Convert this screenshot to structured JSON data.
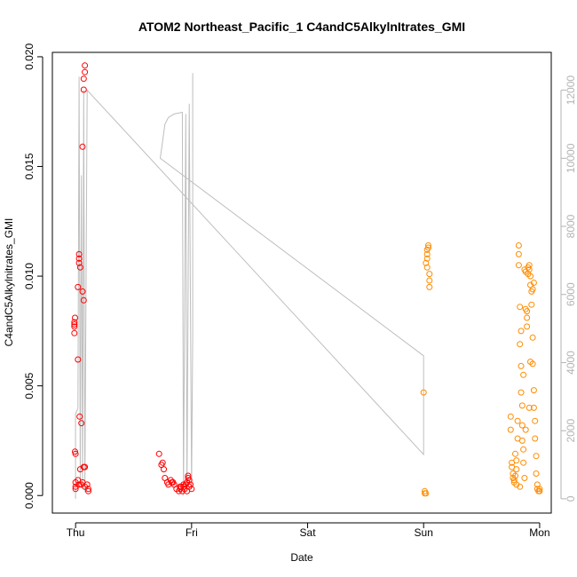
{
  "chart_data": {
    "type": "scatter",
    "title": "ATOM2 Northeast_Pacific_1 C4andC5AlkylnItrates_GMI",
    "xlabel": "Date",
    "ylabel": "C4andC5Alkylnitrates_GMI",
    "x_ticks": [
      {
        "value": 0,
        "label": "Thu"
      },
      {
        "value": 1,
        "label": "Fri"
      },
      {
        "value": 2,
        "label": "Sat"
      },
      {
        "value": 3,
        "label": "Sun"
      },
      {
        "value": 4,
        "label": "Mon"
      }
    ],
    "xlim": [
      -0.2,
      4.1
    ],
    "ylim": [
      -0.0008,
      0.0202
    ],
    "y_ticks": [
      0.0,
      0.005,
      0.01,
      0.015,
      0.02
    ],
    "y_tick_labels": [
      "0.000",
      "0.005",
      "0.010",
      "0.015",
      "0.020"
    ],
    "y2lim": [
      -420,
      13110
    ],
    "y2_ticks": [
      0,
      2000,
      4000,
      6000,
      8000,
      10000,
      12000
    ],
    "y2_tick_labels": [
      "0",
      "2000",
      "4000",
      "6000",
      "8000",
      "10000",
      "12000"
    ],
    "colors": {
      "red_series": "#ff0000",
      "orange_series": "#ff8c00",
      "altitude_line": "#bebebe",
      "right_axis": "#b3b3b3"
    },
    "series": [
      {
        "color": "red",
        "points": [
          [
            -0.01,
            0.0079
          ],
          [
            -0.01,
            0.0078
          ],
          [
            -0.01,
            0.0077
          ],
          [
            -0.01,
            0.0074
          ],
          [
            -0.005,
            0.0081
          ],
          [
            -0.005,
            0.002
          ],
          [
            0.0,
            0.0019
          ],
          [
            0.0,
            0.0006
          ],
          [
            0.0,
            0.0004
          ],
          [
            0.0,
            0.0003
          ],
          [
            0.02,
            0.0062
          ],
          [
            0.02,
            0.0095
          ],
          [
            0.03,
            0.0106
          ],
          [
            0.03,
            0.0108
          ],
          [
            0.03,
            0.011
          ],
          [
            0.04,
            0.0104
          ],
          [
            0.035,
            0.0036
          ],
          [
            0.04,
            0.0012
          ],
          [
            0.05,
            0.0033
          ],
          [
            0.06,
            0.0093
          ],
          [
            0.07,
            0.0089
          ],
          [
            0.07,
            0.0013
          ],
          [
            0.08,
            0.0013
          ],
          [
            0.06,
            0.0159
          ],
          [
            0.07,
            0.0185
          ],
          [
            0.07,
            0.019
          ],
          [
            0.08,
            0.0193
          ],
          [
            0.08,
            0.0196
          ],
          [
            0.02,
            0.0007
          ],
          [
            0.03,
            0.0005
          ],
          [
            0.05,
            0.0005
          ],
          [
            0.06,
            0.0006
          ],
          [
            0.08,
            0.0004
          ],
          [
            0.1,
            0.0005
          ],
          [
            0.11,
            0.0003
          ],
          [
            0.11,
            0.0002
          ],
          [
            0.72,
            0.0019
          ],
          [
            0.74,
            0.0014
          ],
          [
            0.75,
            0.0015
          ],
          [
            0.76,
            0.0012
          ],
          [
            0.77,
            0.0008
          ],
          [
            0.79,
            0.0006
          ],
          [
            0.8,
            0.0005
          ],
          [
            0.82,
            0.0007
          ],
          [
            0.83,
            0.0006
          ],
          [
            0.84,
            0.0006
          ],
          [
            0.85,
            0.0005
          ],
          [
            0.87,
            0.0003
          ],
          [
            0.89,
            0.0002
          ],
          [
            0.9,
            0.0003
          ],
          [
            0.91,
            0.0004
          ],
          [
            0.92,
            0.0002
          ],
          [
            0.93,
            0.0004
          ],
          [
            0.94,
            0.0003
          ],
          [
            0.95,
            0.0005
          ],
          [
            0.96,
            0.0006
          ],
          [
            0.97,
            0.0008
          ],
          [
            0.97,
            0.0009
          ],
          [
            0.98,
            0.0004
          ],
          [
            0.99,
            0.0005
          ],
          [
            1.0,
            0.0003
          ],
          [
            0.9,
            0.0004
          ],
          [
            0.93,
            0.0005
          ],
          [
            0.96,
            0.0002
          ],
          [
            0.98,
            0.0007
          ]
        ]
      },
      {
        "color": "orange",
        "points": [
          [
            3.0,
            0.0047
          ],
          [
            3.01,
            0.0002
          ],
          [
            3.01,
            0.0001
          ],
          [
            3.02,
            0.0001
          ],
          [
            3.02,
            0.0106
          ],
          [
            3.03,
            0.0108
          ],
          [
            3.03,
            0.011
          ],
          [
            3.03,
            0.0112
          ],
          [
            3.04,
            0.0114
          ],
          [
            3.04,
            0.0113
          ],
          [
            3.03,
            0.0104
          ],
          [
            3.05,
            0.0101
          ],
          [
            3.05,
            0.0098
          ],
          [
            3.05,
            0.0095
          ],
          [
            3.75,
            0.0036
          ],
          [
            3.75,
            0.003
          ],
          [
            3.76,
            0.0015
          ],
          [
            3.76,
            0.0013
          ],
          [
            3.77,
            0.001
          ],
          [
            3.77,
            0.0008
          ],
          [
            3.78,
            0.0006
          ],
          [
            3.78,
            0.0007
          ],
          [
            3.79,
            0.0009
          ],
          [
            3.79,
            0.0019
          ],
          [
            3.8,
            0.0012
          ],
          [
            3.8,
            0.0016
          ],
          [
            3.81,
            0.0034
          ],
          [
            3.81,
            0.0026
          ],
          [
            3.82,
            0.0114
          ],
          [
            3.82,
            0.011
          ],
          [
            3.82,
            0.0105
          ],
          [
            3.83,
            0.0086
          ],
          [
            3.83,
            0.0069
          ],
          [
            3.84,
            0.0059
          ],
          [
            3.84,
            0.0047
          ],
          [
            3.85,
            0.0041
          ],
          [
            3.85,
            0.0032
          ],
          [
            3.85,
            0.0025
          ],
          [
            3.86,
            0.0021
          ],
          [
            3.86,
            0.0015
          ],
          [
            3.87,
            0.0008
          ],
          [
            3.87,
            0.0103
          ],
          [
            3.88,
            0.0102
          ],
          [
            3.88,
            0.0085
          ],
          [
            3.89,
            0.0084
          ],
          [
            3.89,
            0.0081
          ],
          [
            3.89,
            0.0077
          ],
          [
            3.9,
            0.0101
          ],
          [
            3.9,
            0.0104
          ],
          [
            3.91,
            0.0105
          ],
          [
            3.91,
            0.0103
          ],
          [
            3.92,
            0.01
          ],
          [
            3.92,
            0.0096
          ],
          [
            3.93,
            0.0093
          ],
          [
            3.93,
            0.0087
          ],
          [
            3.94,
            0.0072
          ],
          [
            3.94,
            0.006
          ],
          [
            3.95,
            0.0048
          ],
          [
            3.95,
            0.004
          ],
          [
            3.96,
            0.0034
          ],
          [
            3.96,
            0.0026
          ],
          [
            3.97,
            0.0018
          ],
          [
            3.97,
            0.001
          ],
          [
            3.98,
            0.0005
          ],
          [
            3.98,
            0.0003
          ],
          [
            3.99,
            0.0002
          ],
          [
            4.0,
            0.0003
          ],
          [
            4.0,
            0.0002
          ],
          [
            3.88,
            0.003
          ],
          [
            3.86,
            0.0055
          ],
          [
            3.84,
            0.0075
          ],
          [
            3.8,
            0.0005
          ],
          [
            3.83,
            0.0004
          ],
          [
            3.91,
            0.004
          ],
          [
            3.94,
            0.0094
          ],
          [
            3.95,
            0.0097
          ],
          [
            3.92,
            0.0061
          ]
        ]
      }
    ],
    "altitude_line": [
      [
        0.0,
        0
      ],
      [
        0.0,
        2500
      ],
      [
        0.02,
        2650
      ],
      [
        0.03,
        12400
      ],
      [
        0.04,
        500
      ],
      [
        0.05,
        9500
      ],
      [
        0.06,
        300
      ],
      [
        0.07,
        12000
      ],
      [
        0.08,
        200
      ],
      [
        0.1,
        12000
      ],
      [
        3.0,
        1300
      ],
      [
        3.0,
        4000
      ],
      [
        3.0,
        4200
      ],
      [
        0.73,
        10000
      ],
      [
        0.75,
        10500
      ],
      [
        0.77,
        11000
      ],
      [
        0.8,
        11200
      ],
      [
        0.85,
        11300
      ],
      [
        0.92,
        11350
      ],
      [
        0.93,
        100
      ],
      [
        0.95,
        11300
      ],
      [
        0.96,
        200
      ],
      [
        0.98,
        11600
      ],
      [
        1.0,
        300
      ],
      [
        1.01,
        4800
      ],
      [
        1.01,
        12500
      ]
    ]
  }
}
